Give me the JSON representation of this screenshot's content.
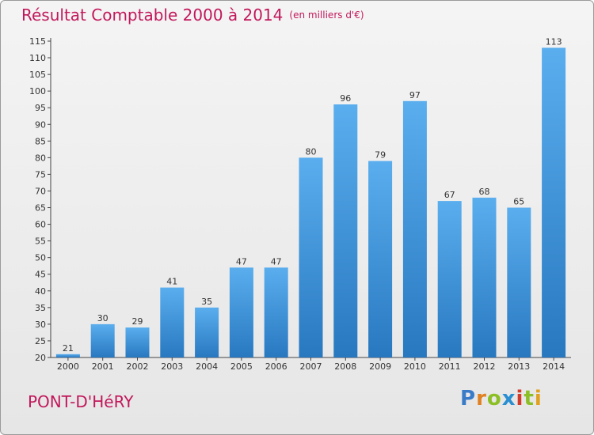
{
  "title": "Résultat Comptable 2000 à 2014",
  "subtitle": "(en milliers d'€)",
  "town": "PONT-D'HéRY",
  "logo": {
    "letters": [
      "P",
      "r",
      "o",
      "x",
      "i",
      "t",
      "i"
    ],
    "colors": [
      "#3a7bc8",
      "#e08020",
      "#8cbf26",
      "#2a8fd0",
      "#d43a2a",
      "#8cbf26",
      "#e0a020"
    ]
  },
  "chart_data": {
    "type": "bar",
    "title": "Résultat Comptable 2000 à 2014",
    "xlabel": "",
    "ylabel": "",
    "categories": [
      "2000",
      "2001",
      "2002",
      "2003",
      "2004",
      "2005",
      "2006",
      "2007",
      "2008",
      "2009",
      "2010",
      "2011",
      "2012",
      "2013",
      "2014"
    ],
    "values": [
      21,
      30,
      29,
      41,
      35,
      47,
      47,
      80,
      96,
      79,
      97,
      67,
      68,
      65,
      113
    ],
    "ylim": [
      20,
      115
    ],
    "yticks": [
      20,
      25,
      30,
      35,
      40,
      45,
      50,
      55,
      60,
      65,
      70,
      75,
      80,
      85,
      90,
      95,
      100,
      105,
      110,
      115
    ],
    "grid": false,
    "bar_color": "#4a9de0"
  }
}
